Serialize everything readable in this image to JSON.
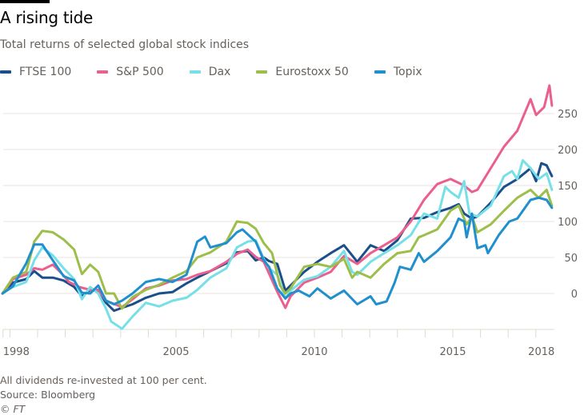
{
  "chart_data": {
    "type": "line",
    "title": "A rising tide",
    "subtitle": "Total returns of selected global stock indices",
    "xlabel": "",
    "ylabel": "",
    "xlim": [
      1998.75,
      2018.58
    ],
    "ylim": [
      -50,
      290
    ],
    "y_ticks": [
      0,
      50,
      100,
      150,
      200,
      250
    ],
    "x_ticks": [
      1999,
      2000,
      2001,
      2002,
      2003,
      2004,
      2005,
      2006,
      2007,
      2008,
      2009,
      2010,
      2011,
      2012,
      2013,
      2014,
      2015,
      2016,
      2017,
      2018
    ],
    "x_tick_labels": [
      {
        "label": "1998",
        "x": 1998.75,
        "anchor": "start"
      },
      {
        "label": "2005",
        "x": 2005
      },
      {
        "label": "2010",
        "x": 2010
      },
      {
        "label": "2015",
        "x": 2015
      },
      {
        "label": "2018",
        "x": 2018.2
      }
    ],
    "grid": true,
    "legend_placement": "top-left",
    "series": [
      {
        "name": "FTSE 100",
        "color": "#1a4f8b",
        "points": [
          [
            1998.73,
            0
          ],
          [
            1999.11,
            15
          ],
          [
            1999.59,
            20
          ],
          [
            1999.88,
            31
          ],
          [
            2000.17,
            22
          ],
          [
            2000.55,
            22
          ],
          [
            2000.94,
            18
          ],
          [
            2001.32,
            9
          ],
          [
            2001.6,
            -4
          ],
          [
            2001.9,
            5
          ],
          [
            2002.19,
            3
          ],
          [
            2002.47,
            -13
          ],
          [
            2002.76,
            -24
          ],
          [
            2003.05,
            -20
          ],
          [
            2003.43,
            -15
          ],
          [
            2003.91,
            -6
          ],
          [
            2004.39,
            0
          ],
          [
            2004.88,
            2
          ],
          [
            2005.38,
            14
          ],
          [
            2005.77,
            22
          ],
          [
            2006.24,
            31
          ],
          [
            2006.82,
            42
          ],
          [
            2007.2,
            57
          ],
          [
            2007.59,
            59
          ],
          [
            2007.88,
            46
          ],
          [
            2008.17,
            50
          ],
          [
            2008.36,
            45
          ],
          [
            2008.66,
            41
          ],
          [
            2008.95,
            4
          ],
          [
            2009.14,
            11
          ],
          [
            2009.63,
            30
          ],
          [
            2010.11,
            44
          ],
          [
            2010.59,
            56
          ],
          [
            2011.07,
            67
          ],
          [
            2011.55,
            44
          ],
          [
            2012.03,
            67
          ],
          [
            2012.52,
            59
          ],
          [
            2013.0,
            74
          ],
          [
            2013.48,
            104
          ],
          [
            2013.96,
            105
          ],
          [
            2014.44,
            113
          ],
          [
            2014.92,
            119
          ],
          [
            2015.21,
            124
          ],
          [
            2015.41,
            111
          ],
          [
            2015.69,
            104
          ],
          [
            2015.89,
            107
          ],
          [
            2016.37,
            126
          ],
          [
            2016.85,
            148
          ],
          [
            2017.33,
            159
          ],
          [
            2017.81,
            174
          ],
          [
            2018.01,
            156
          ],
          [
            2018.2,
            181
          ],
          [
            2018.39,
            178
          ],
          [
            2018.58,
            163
          ]
        ]
      },
      {
        "name": "S&P 500",
        "color": "#eb5e8d",
        "points": [
          [
            1998.73,
            0
          ],
          [
            1999.11,
            20
          ],
          [
            1999.59,
            26
          ],
          [
            1999.88,
            35
          ],
          [
            2000.17,
            33
          ],
          [
            2000.55,
            40
          ],
          [
            2000.94,
            25
          ],
          [
            2001.13,
            16
          ],
          [
            2001.5,
            9
          ],
          [
            2001.9,
            5
          ],
          [
            2002.19,
            5
          ],
          [
            2002.47,
            -10
          ],
          [
            2003.05,
            -19
          ],
          [
            2003.43,
            -8
          ],
          [
            2003.91,
            7
          ],
          [
            2004.39,
            11
          ],
          [
            2004.88,
            18
          ],
          [
            2005.38,
            20
          ],
          [
            2005.77,
            26
          ],
          [
            2006.24,
            31
          ],
          [
            2006.82,
            44
          ],
          [
            2007.2,
            55
          ],
          [
            2007.59,
            61
          ],
          [
            2007.88,
            51
          ],
          [
            2008.17,
            44
          ],
          [
            2008.65,
            3
          ],
          [
            2008.95,
            -20
          ],
          [
            2009.14,
            -4
          ],
          [
            2009.63,
            15
          ],
          [
            2010.11,
            22
          ],
          [
            2010.59,
            30
          ],
          [
            2011.07,
            52
          ],
          [
            2011.55,
            41
          ],
          [
            2012.03,
            56
          ],
          [
            2012.52,
            67
          ],
          [
            2013.0,
            78
          ],
          [
            2013.48,
            100
          ],
          [
            2013.96,
            130
          ],
          [
            2014.44,
            152
          ],
          [
            2014.92,
            159
          ],
          [
            2015.41,
            150
          ],
          [
            2015.69,
            141
          ],
          [
            2015.89,
            144
          ],
          [
            2016.37,
            174
          ],
          [
            2016.85,
            204
          ],
          [
            2017.33,
            226
          ],
          [
            2017.81,
            270
          ],
          [
            2018.01,
            248
          ],
          [
            2018.3,
            259
          ],
          [
            2018.49,
            289
          ],
          [
            2018.58,
            261
          ]
        ]
      },
      {
        "name": "Dax",
        "color": "#76dfe8",
        "points": [
          [
            1998.73,
            0
          ],
          [
            1999.11,
            9
          ],
          [
            1999.59,
            16
          ],
          [
            1999.88,
            46
          ],
          [
            2000.17,
            64
          ],
          [
            2000.55,
            53
          ],
          [
            2000.94,
            35
          ],
          [
            2001.32,
            20
          ],
          [
            2001.6,
            -8
          ],
          [
            2001.9,
            9
          ],
          [
            2002.19,
            0
          ],
          [
            2002.47,
            -21
          ],
          [
            2002.66,
            -39
          ],
          [
            2003.05,
            -49
          ],
          [
            2003.43,
            -32
          ],
          [
            2003.91,
            -13
          ],
          [
            2004.39,
            -18
          ],
          [
            2004.88,
            -10
          ],
          [
            2005.38,
            -6
          ],
          [
            2005.77,
            5
          ],
          [
            2006.24,
            22
          ],
          [
            2006.82,
            35
          ],
          [
            2007.2,
            64
          ],
          [
            2007.59,
            72
          ],
          [
            2007.88,
            74
          ],
          [
            2008.17,
            48
          ],
          [
            2008.36,
            35
          ],
          [
            2008.66,
            26
          ],
          [
            2008.95,
            -7
          ],
          [
            2009.14,
            4
          ],
          [
            2009.63,
            19
          ],
          [
            2010.11,
            24
          ],
          [
            2010.59,
            37
          ],
          [
            2011.07,
            59
          ],
          [
            2011.36,
            30
          ],
          [
            2011.55,
            26
          ],
          [
            2012.03,
            44
          ],
          [
            2012.52,
            56
          ],
          [
            2013.0,
            67
          ],
          [
            2013.48,
            81
          ],
          [
            2013.96,
            111
          ],
          [
            2014.44,
            104
          ],
          [
            2014.73,
            148
          ],
          [
            2014.92,
            141
          ],
          [
            2015.21,
            133
          ],
          [
            2015.41,
            156
          ],
          [
            2015.6,
            111
          ],
          [
            2015.89,
            107
          ],
          [
            2016.37,
            122
          ],
          [
            2016.85,
            163
          ],
          [
            2017.14,
            170
          ],
          [
            2017.33,
            159
          ],
          [
            2017.53,
            185
          ],
          [
            2017.81,
            174
          ],
          [
            2018.1,
            159
          ],
          [
            2018.39,
            167
          ],
          [
            2018.58,
            144
          ]
        ]
      },
      {
        "name": "Eurostoxx 50",
        "color": "#9dbf4a",
        "points": [
          [
            1998.73,
            0
          ],
          [
            1999.11,
            22
          ],
          [
            1999.59,
            30
          ],
          [
            1999.88,
            72
          ],
          [
            2000.17,
            87
          ],
          [
            2000.55,
            85
          ],
          [
            2000.94,
            75
          ],
          [
            2001.32,
            61
          ],
          [
            2001.6,
            27
          ],
          [
            2001.9,
            40
          ],
          [
            2002.19,
            30
          ],
          [
            2002.47,
            0
          ],
          [
            2002.76,
            0
          ],
          [
            2003.05,
            -21
          ],
          [
            2003.43,
            -5
          ],
          [
            2003.91,
            5
          ],
          [
            2004.39,
            12
          ],
          [
            2004.88,
            22
          ],
          [
            2005.38,
            31
          ],
          [
            2005.77,
            50
          ],
          [
            2006.24,
            57
          ],
          [
            2006.82,
            72
          ],
          [
            2007.2,
            100
          ],
          [
            2007.59,
            98
          ],
          [
            2007.88,
            90
          ],
          [
            2008.17,
            70
          ],
          [
            2008.47,
            56
          ],
          [
            2008.76,
            11
          ],
          [
            2008.95,
            0
          ],
          [
            2009.14,
            7
          ],
          [
            2009.63,
            37
          ],
          [
            2010.11,
            41
          ],
          [
            2010.59,
            37
          ],
          [
            2011.07,
            48
          ],
          [
            2011.36,
            22
          ],
          [
            2011.55,
            30
          ],
          [
            2012.03,
            22
          ],
          [
            2012.52,
            41
          ],
          [
            2013.0,
            56
          ],
          [
            2013.48,
            59
          ],
          [
            2013.77,
            78
          ],
          [
            2013.96,
            81
          ],
          [
            2014.44,
            89
          ],
          [
            2014.92,
            115
          ],
          [
            2015.21,
            122
          ],
          [
            2015.5,
            96
          ],
          [
            2015.69,
            107
          ],
          [
            2015.89,
            85
          ],
          [
            2016.37,
            96
          ],
          [
            2016.85,
            115
          ],
          [
            2017.33,
            133
          ],
          [
            2017.81,
            144
          ],
          [
            2018.1,
            133
          ],
          [
            2018.39,
            144
          ],
          [
            2018.58,
            122
          ]
        ]
      },
      {
        "name": "Topix",
        "color": "#208fce",
        "points": [
          [
            1998.73,
            0
          ],
          [
            1999.11,
            10
          ],
          [
            1999.59,
            42
          ],
          [
            1999.88,
            68
          ],
          [
            2000.17,
            68
          ],
          [
            2000.55,
            46
          ],
          [
            2000.94,
            24
          ],
          [
            2001.32,
            18
          ],
          [
            2001.6,
            1
          ],
          [
            2001.9,
            0
          ],
          [
            2002.19,
            11
          ],
          [
            2002.47,
            -10
          ],
          [
            2002.76,
            -15
          ],
          [
            2003.05,
            -10
          ],
          [
            2003.43,
            0
          ],
          [
            2003.91,
            16
          ],
          [
            2004.39,
            20
          ],
          [
            2004.88,
            16
          ],
          [
            2005.38,
            26
          ],
          [
            2005.77,
            72
          ],
          [
            2006.05,
            79
          ],
          [
            2006.24,
            64
          ],
          [
            2006.82,
            70
          ],
          [
            2007.2,
            85
          ],
          [
            2007.4,
            89
          ],
          [
            2007.88,
            72
          ],
          [
            2008.17,
            46
          ],
          [
            2008.36,
            37
          ],
          [
            2008.66,
            7
          ],
          [
            2008.95,
            -7
          ],
          [
            2009.14,
            0
          ],
          [
            2009.43,
            4
          ],
          [
            2009.82,
            -4
          ],
          [
            2010.11,
            7
          ],
          [
            2010.59,
            -7
          ],
          [
            2011.07,
            4
          ],
          [
            2011.55,
            -15
          ],
          [
            2012.03,
            -4
          ],
          [
            2012.23,
            -15
          ],
          [
            2012.61,
            -11
          ],
          [
            2012.9,
            15
          ],
          [
            2013.09,
            37
          ],
          [
            2013.48,
            33
          ],
          [
            2013.77,
            56
          ],
          [
            2013.96,
            44
          ],
          [
            2014.44,
            59
          ],
          [
            2014.92,
            78
          ],
          [
            2015.21,
            104
          ],
          [
            2015.41,
            100
          ],
          [
            2015.5,
            78
          ],
          [
            2015.69,
            111
          ],
          [
            2015.89,
            63
          ],
          [
            2016.18,
            67
          ],
          [
            2016.27,
            56
          ],
          [
            2016.66,
            81
          ],
          [
            2017.04,
            100
          ],
          [
            2017.33,
            104
          ],
          [
            2017.81,
            130
          ],
          [
            2018.1,
            133
          ],
          [
            2018.39,
            130
          ],
          [
            2018.58,
            119
          ]
        ]
      }
    ],
    "notes": [
      "All dividends re-invested at 100 per cent.",
      "Source: Bloomberg",
      "© FT"
    ]
  }
}
